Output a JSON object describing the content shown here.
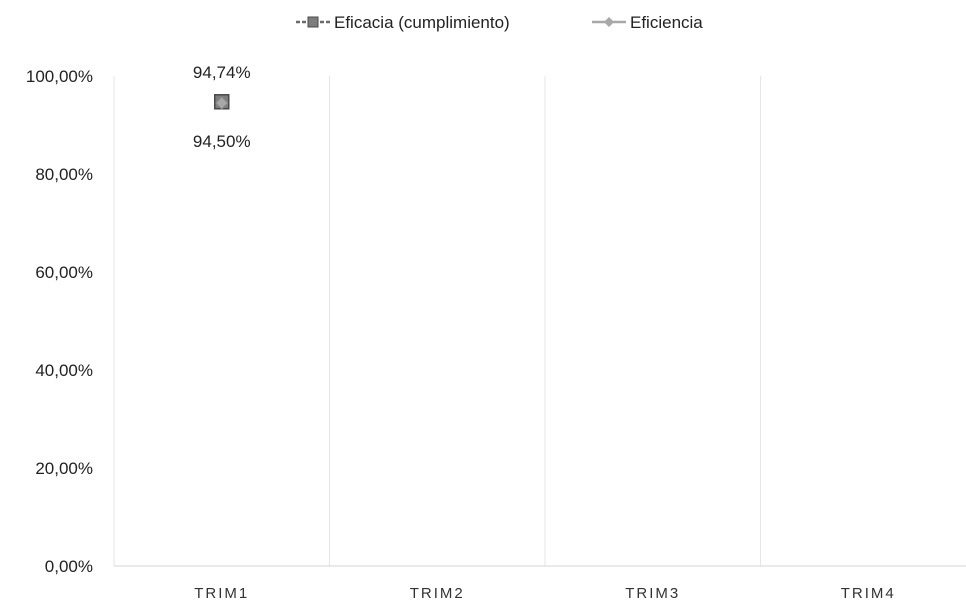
{
  "chart_data": {
    "type": "line",
    "title": "",
    "xlabel": "",
    "ylabel": "",
    "categories": [
      "TRIM1",
      "TRIM2",
      "TRIM3",
      "TRIM4"
    ],
    "ylim": [
      0,
      100
    ],
    "yticks": [
      "0,00%",
      "20,00%",
      "40,00%",
      "60,00%",
      "80,00%",
      "100,00%"
    ],
    "grid": "vertical category separators",
    "legend_position": "top",
    "series": [
      {
        "name": "Eficacia (cumplimiento)",
        "marker": "square",
        "color": "#6b6b6b",
        "values": [
          94.74,
          null,
          null,
          null
        ],
        "labels": [
          "94,74%",
          "",
          "",
          ""
        ],
        "label_position": "above"
      },
      {
        "name": "Eficiencia",
        "marker": "diamond",
        "color": "#a8a8a8",
        "values": [
          94.5,
          null,
          null,
          null
        ],
        "labels": [
          "94,50%",
          "",
          "",
          ""
        ],
        "label_position": "below"
      }
    ]
  }
}
